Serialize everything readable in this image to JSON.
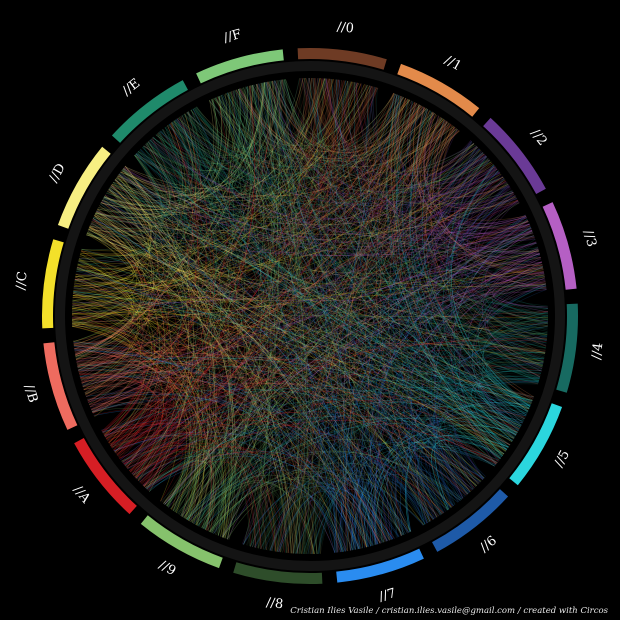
{
  "diagram": {
    "type": "circos-chord",
    "segments": [
      {
        "label": "//0",
        "color": "#6e3b24"
      },
      {
        "label": "//1",
        "color": "#e38a4a"
      },
      {
        "label": "//2",
        "color": "#6a3a96"
      },
      {
        "label": "//3",
        "color": "#b55fc4"
      },
      {
        "label": "//4",
        "color": "#176a61"
      },
      {
        "label": "//5",
        "color": "#2bd6de"
      },
      {
        "label": "//6",
        "color": "#1e5aa8"
      },
      {
        "label": "//7",
        "color": "#2a8cf0"
      },
      {
        "label": "//8",
        "color": "#2e4d2a"
      },
      {
        "label": "//9",
        "color": "#86c26c"
      },
      {
        "label": "//A",
        "color": "#d61e24"
      },
      {
        "label": "//B",
        "color": "#ee6b5f"
      },
      {
        "label": "//C",
        "color": "#f3e02a"
      },
      {
        "label": "//D",
        "color": "#f7ef82"
      },
      {
        "label": "//E",
        "color": "#1f8a6b"
      },
      {
        "label": "//F",
        "color": "#7ec878"
      }
    ]
  },
  "credit": "Cristian Ilies Vasile / cristian.ilies.vasile@gmail.com / created with Circos"
}
